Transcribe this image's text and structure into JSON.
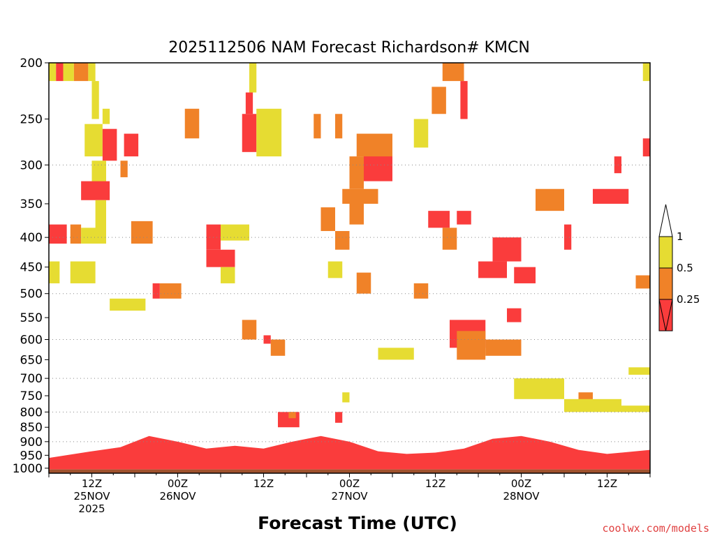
{
  "chart_data": {
    "type": "heatmap",
    "title": "2025112506 NAM Forecast Richardson# KMCN",
    "xlabel": "Forecast Time (UTC)",
    "ylabel": "",
    "credit": "coolwx.com/models",
    "x_range_hours": [
      0,
      84
    ],
    "y_axis": {
      "scale": "log-pressure",
      "range": [
        1020,
        200
      ],
      "ticks": [
        200,
        250,
        300,
        350,
        400,
        450,
        500,
        550,
        600,
        650,
        700,
        750,
        800,
        850,
        900,
        950,
        1000
      ],
      "gridlines": [
        300,
        400,
        500,
        600,
        700,
        800,
        900
      ]
    },
    "x_ticks": [
      {
        "hour": 6,
        "lines": [
          "12Z",
          "25NOV",
          "2025"
        ]
      },
      {
        "hour": 18,
        "lines": [
          "00Z",
          "26NOV"
        ]
      },
      {
        "hour": 30,
        "lines": [
          "12Z"
        ]
      },
      {
        "hour": 42,
        "lines": [
          "00Z",
          "27NOV"
        ]
      },
      {
        "hour": 54,
        "lines": [
          "12Z"
        ]
      },
      {
        "hour": 66,
        "lines": [
          "00Z",
          "28NOV"
        ]
      },
      {
        "hour": 78,
        "lines": [
          "12Z"
        ]
      }
    ],
    "colorbar": {
      "bins": [
        {
          "lo": 0.5,
          "hi": 1.0,
          "color": "#e6dc32"
        },
        {
          "lo": 0.25,
          "hi": 0.5,
          "color": "#f08228"
        },
        {
          "lo": null,
          "hi": 0.25,
          "color": "#fa3c3c"
        }
      ],
      "labels": [
        "1",
        "0.5",
        "0.25"
      ],
      "extend_max_color": "#ffffff",
      "extend_min_color": "#fa3c3c"
    },
    "ground": {
      "color": "#a0522d",
      "from_p": 1005,
      "to_p": 1020
    },
    "cells": [
      {
        "t0": 0,
        "t1": 1,
        "p0": 200,
        "p1": 215,
        "v": 0.6
      },
      {
        "t0": 1,
        "t1": 2,
        "p0": 200,
        "p1": 215,
        "v": 0.2
      },
      {
        "t0": 2,
        "t1": 3.5,
        "p0": 200,
        "p1": 215,
        "v": 0.6
      },
      {
        "t0": 3.5,
        "t1": 5.5,
        "p0": 200,
        "p1": 215,
        "v": 0.4
      },
      {
        "t0": 5.5,
        "t1": 6.5,
        "p0": 200,
        "p1": 215,
        "v": 0.6
      },
      {
        "t0": 6,
        "t1": 7,
        "p0": 215,
        "p1": 250,
        "v": 0.6
      },
      {
        "t0": 7.5,
        "t1": 8.5,
        "p0": 240,
        "p1": 255,
        "v": 0.7
      },
      {
        "t0": 5,
        "t1": 7.5,
        "p0": 255,
        "p1": 290,
        "v": 0.6
      },
      {
        "t0": 7.5,
        "t1": 9.5,
        "p0": 260,
        "p1": 295,
        "v": 0.2
      },
      {
        "t0": 6,
        "t1": 8,
        "p0": 295,
        "p1": 325,
        "v": 0.6
      },
      {
        "t0": 10.5,
        "t1": 12.5,
        "p0": 265,
        "p1": 290,
        "v": 0.2
      },
      {
        "t0": 10,
        "t1": 11,
        "p0": 295,
        "p1": 315,
        "v": 0.4
      },
      {
        "t0": 4.5,
        "t1": 8.5,
        "p0": 320,
        "p1": 345,
        "v": 0.2
      },
      {
        "t0": 6.5,
        "t1": 8,
        "p0": 345,
        "p1": 390,
        "v": 0.6
      },
      {
        "t0": 0,
        "t1": 2.5,
        "p0": 380,
        "p1": 410,
        "v": 0.2
      },
      {
        "t0": 3,
        "t1": 4.5,
        "p0": 380,
        "p1": 410,
        "v": 0.4
      },
      {
        "t0": 4.5,
        "t1": 8,
        "p0": 385,
        "p1": 410,
        "v": 0.6
      },
      {
        "t0": 0,
        "t1": 1.5,
        "p0": 440,
        "p1": 480,
        "v": 0.6
      },
      {
        "t0": 3,
        "t1": 6.5,
        "p0": 440,
        "p1": 480,
        "v": 0.6
      },
      {
        "t0": 11.5,
        "t1": 14.5,
        "p0": 375,
        "p1": 410,
        "v": 0.4
      },
      {
        "t0": 14.5,
        "t1": 15.5,
        "p0": 480,
        "p1": 510,
        "v": 0.2
      },
      {
        "t0": 15.5,
        "t1": 18.5,
        "p0": 480,
        "p1": 510,
        "v": 0.4
      },
      {
        "t0": 8.5,
        "t1": 13.5,
        "p0": 510,
        "p1": 535,
        "v": 0.6
      },
      {
        "t0": 19,
        "t1": 21,
        "p0": 240,
        "p1": 270,
        "v": 0.4
      },
      {
        "t0": 27,
        "t1": 29,
        "p0": 245,
        "p1": 285,
        "v": 0.2
      },
      {
        "t0": 27.5,
        "t1": 28.5,
        "p0": 225,
        "p1": 245,
        "v": 0.2
      },
      {
        "t0": 28,
        "t1": 29,
        "p0": 200,
        "p1": 225,
        "v": 0.7
      },
      {
        "t0": 29,
        "t1": 32.5,
        "p0": 240,
        "p1": 290,
        "v": 0.6
      },
      {
        "t0": 22,
        "t1": 24,
        "p0": 380,
        "p1": 420,
        "v": 0.2
      },
      {
        "t0": 22,
        "t1": 26,
        "p0": 420,
        "p1": 450,
        "v": 0.2
      },
      {
        "t0": 24,
        "t1": 28,
        "p0": 380,
        "p1": 405,
        "v": 0.6
      },
      {
        "t0": 24,
        "t1": 26,
        "p0": 450,
        "p1": 480,
        "v": 0.6
      },
      {
        "t0": 27,
        "t1": 29,
        "p0": 555,
        "p1": 600,
        "v": 0.4
      },
      {
        "t0": 30,
        "t1": 31,
        "p0": 590,
        "p1": 610,
        "v": 0.2
      },
      {
        "t0": 31,
        "t1": 33,
        "p0": 600,
        "p1": 640,
        "v": 0.4
      },
      {
        "t0": 32,
        "t1": 35,
        "p0": 800,
        "p1": 850,
        "v": 0.2
      },
      {
        "t0": 33.5,
        "t1": 34.5,
        "p0": 820,
        "p1": 800,
        "v": 0.4
      },
      {
        "t0": 37,
        "t1": 38,
        "p0": 245,
        "p1": 270,
        "v": 0.4
      },
      {
        "t0": 40,
        "t1": 41,
        "p0": 245,
        "p1": 270,
        "v": 0.4
      },
      {
        "t0": 42,
        "t1": 44,
        "p0": 290,
        "p1": 330,
        "v": 0.4
      },
      {
        "t0": 44,
        "t1": 48,
        "p0": 280,
        "p1": 320,
        "v": 0.2
      },
      {
        "t0": 41,
        "t1": 46,
        "p0": 330,
        "p1": 350,
        "v": 0.4
      },
      {
        "t0": 43,
        "t1": 48,
        "p0": 265,
        "p1": 290,
        "v": 0.4
      },
      {
        "t0": 42,
        "t1": 44,
        "p0": 345,
        "p1": 380,
        "v": 0.4
      },
      {
        "t0": 38,
        "t1": 40,
        "p0": 355,
        "p1": 390,
        "v": 0.4
      },
      {
        "t0": 40,
        "t1": 42,
        "p0": 390,
        "p1": 420,
        "v": 0.4
      },
      {
        "t0": 43,
        "t1": 45,
        "p0": 460,
        "p1": 500,
        "v": 0.4
      },
      {
        "t0": 39,
        "t1": 41,
        "p0": 440,
        "p1": 470,
        "v": 0.6
      },
      {
        "t0": 46,
        "t1": 51,
        "p0": 620,
        "p1": 650,
        "v": 0.6
      },
      {
        "t0": 40,
        "t1": 41,
        "p0": 800,
        "p1": 835,
        "v": 0.2
      },
      {
        "t0": 41,
        "t1": 42,
        "p0": 740,
        "p1": 770,
        "v": 0.6
      },
      {
        "t0": 51,
        "t1": 53,
        "p0": 480,
        "p1": 510,
        "v": 0.4
      },
      {
        "t0": 51,
        "t1": 53,
        "p0": 250,
        "p1": 280,
        "v": 0.6
      },
      {
        "t0": 53.5,
        "t1": 55.5,
        "p0": 220,
        "p1": 245,
        "v": 0.4
      },
      {
        "t0": 55,
        "t1": 58,
        "p0": 200,
        "p1": 215,
        "v": 0.4
      },
      {
        "t0": 57.5,
        "t1": 58.5,
        "p0": 215,
        "p1": 250,
        "v": 0.2
      },
      {
        "t0": 53,
        "t1": 56,
        "p0": 360,
        "p1": 385,
        "v": 0.2
      },
      {
        "t0": 55,
        "t1": 57,
        "p0": 385,
        "p1": 420,
        "v": 0.4
      },
      {
        "t0": 57,
        "t1": 59,
        "p0": 360,
        "p1": 380,
        "v": 0.2
      },
      {
        "t0": 56,
        "t1": 61,
        "p0": 555,
        "p1": 620,
        "v": 0.2
      },
      {
        "t0": 57,
        "t1": 61,
        "p0": 580,
        "p1": 650,
        "v": 0.4
      },
      {
        "t0": 61,
        "t1": 66,
        "p0": 600,
        "p1": 640,
        "v": 0.4
      },
      {
        "t0": 62,
        "t1": 66,
        "p0": 400,
        "p1": 440,
        "v": 0.2
      },
      {
        "t0": 60,
        "t1": 64,
        "p0": 440,
        "p1": 470,
        "v": 0.2
      },
      {
        "t0": 65,
        "t1": 68,
        "p0": 450,
        "p1": 480,
        "v": 0.2
      },
      {
        "t0": 64,
        "t1": 66,
        "p0": 530,
        "p1": 560,
        "v": 0.2
      },
      {
        "t0": 68,
        "t1": 72,
        "p0": 330,
        "p1": 360,
        "v": 0.4
      },
      {
        "t0": 72,
        "t1": 73,
        "p0": 380,
        "p1": 420,
        "v": 0.2
      },
      {
        "t0": 76,
        "t1": 81,
        "p0": 330,
        "p1": 350,
        "v": 0.2
      },
      {
        "t0": 79,
        "t1": 80,
        "p0": 290,
        "p1": 310,
        "v": 0.2
      },
      {
        "t0": 74,
        "t1": 76,
        "p0": 740,
        "p1": 770,
        "v": 0.4
      },
      {
        "t0": 72,
        "t1": 80,
        "p0": 760,
        "p1": 800,
        "v": 0.6
      },
      {
        "t0": 65,
        "t1": 72,
        "p0": 700,
        "p1": 760,
        "v": 0.6
      },
      {
        "t0": 83,
        "t1": 84,
        "p0": 200,
        "p1": 215,
        "v": 0.6
      },
      {
        "t0": 83,
        "t1": 84,
        "p0": 270,
        "p1": 290,
        "v": 0.2
      },
      {
        "t0": 82,
        "t1": 84,
        "p0": 465,
        "p1": 490,
        "v": 0.4
      },
      {
        "t0": 81,
        "t1": 84,
        "p0": 670,
        "p1": 690,
        "v": 0.6
      },
      {
        "t0": 80,
        "t1": 84,
        "p0": 780,
        "p1": 800,
        "v": 0.6
      }
    ],
    "pbl_band": {
      "low_color": "#fa3c3c",
      "top_p_by_hour": [
        {
          "t": 0,
          "p": 960
        },
        {
          "t": 6,
          "p": 935
        },
        {
          "t": 10,
          "p": 920
        },
        {
          "t": 14,
          "p": 880
        },
        {
          "t": 18,
          "p": 900
        },
        {
          "t": 22,
          "p": 925
        },
        {
          "t": 26,
          "p": 915
        },
        {
          "t": 30,
          "p": 925
        },
        {
          "t": 34,
          "p": 900
        },
        {
          "t": 38,
          "p": 880
        },
        {
          "t": 42,
          "p": 900
        },
        {
          "t": 46,
          "p": 935
        },
        {
          "t": 50,
          "p": 945
        },
        {
          "t": 54,
          "p": 940
        },
        {
          "t": 58,
          "p": 925
        },
        {
          "t": 62,
          "p": 890
        },
        {
          "t": 66,
          "p": 880
        },
        {
          "t": 70,
          "p": 900
        },
        {
          "t": 74,
          "p": 930
        },
        {
          "t": 78,
          "p": 945
        },
        {
          "t": 84,
          "p": 930
        }
      ]
    }
  }
}
